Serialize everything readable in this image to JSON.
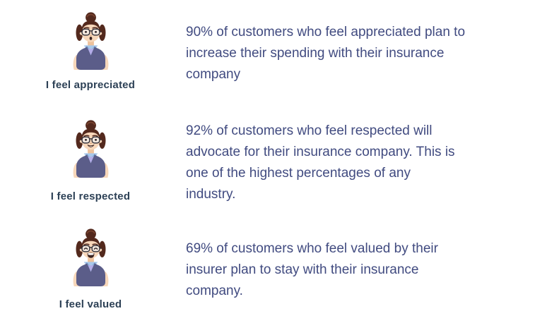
{
  "page": {
    "background": "#ffffff",
    "text_color": "#414b80",
    "caption_color": "#2d4156"
  },
  "rows": [
    {
      "caption": "I feel appreciated",
      "avatar_expression": "surprised",
      "stat_lines": [
        "90% of customers who feel appreciated plan to",
        "increase their spending with their insurance",
        "company"
      ]
    },
    {
      "caption": "I feel respected",
      "avatar_expression": "smiling",
      "stat_lines": [
        "92% of customers who feel respected will",
        "advocate for their insurance company. This is",
        "one of the highest percentages of any",
        "industry."
      ]
    },
    {
      "caption": "I feel valued",
      "avatar_expression": "laughing",
      "stat_lines": [
        "69% of customers who feel valued by their",
        "insurer plan to stay with their insurance",
        "company."
      ]
    }
  ],
  "colors": {
    "avatar": {
      "hair": "#53291d",
      "hair_highlight": "#7a4430",
      "skin": "#f7d7ba",
      "skin_shadow": "#eec29c",
      "glasses_frame": "#2e2e38",
      "lens": "#eef1f5",
      "eye": "#33282a",
      "mouth": "#3c2420",
      "vest": "#5b5d89",
      "collar": "#a9c8ea",
      "collar_edge": "#7fa6d4",
      "sweater_v": "#b4ace8"
    }
  }
}
